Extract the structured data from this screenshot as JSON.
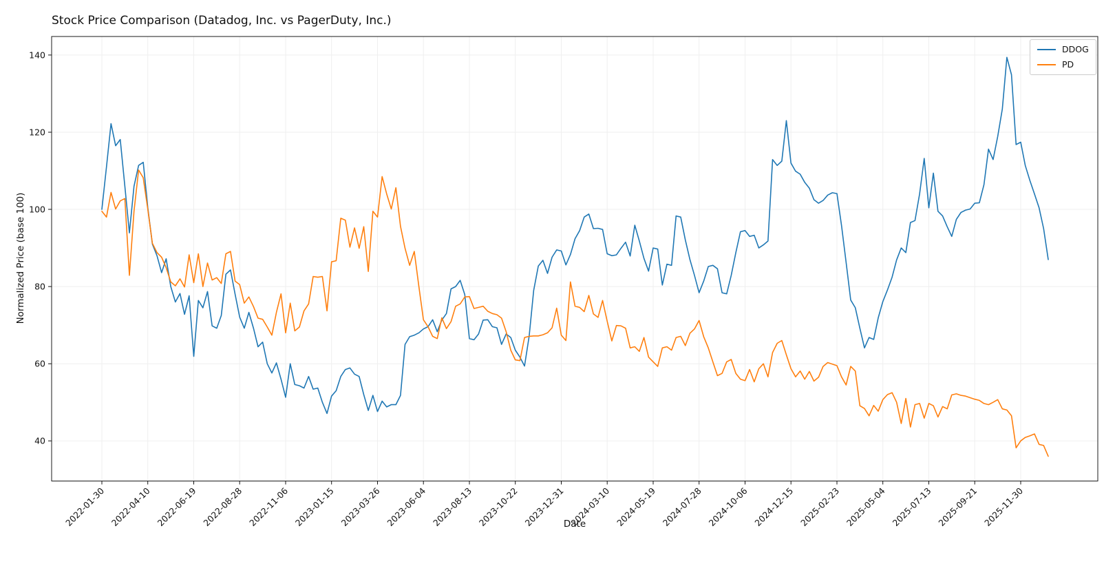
{
  "title": "Stock Price Comparison (Datadog, Inc. vs PagerDuty, Inc.)",
  "xlabel": "Date",
  "ylabel": "Normalized Price (base 100)",
  "legend": {
    "position": "upper right",
    "items": [
      {
        "label": "DDOG",
        "color": "#1f77b4"
      },
      {
        "label": "PD",
        "color": "#ff7f0e"
      }
    ]
  },
  "chart_data": {
    "type": "line",
    "title": "Stock Price Comparison (Datadog, Inc. vs PagerDuty, Inc.)",
    "xlabel": "Date",
    "ylabel": "Normalized Price (base 100)",
    "grid": true,
    "legend_position": "upper right",
    "x_start_date": "2022-01-30",
    "x_frequency": "weekly",
    "x_tick_every": 10,
    "x_tick_labels": [
      "2022-01-30",
      "2022-04-10",
      "2022-06-19",
      "2022-08-28",
      "2022-11-06",
      "2023-01-15",
      "2023-03-26",
      "2023-06-04",
      "2023-08-13",
      "2023-10-22",
      "2023-12-31",
      "2024-03-10",
      "2024-05-19",
      "2024-07-28",
      "2024-10-06",
      "2024-12-15",
      "2025-02-23",
      "2025-05-04",
      "2025-07-13",
      "2025-09-21",
      "2025-11-30"
    ],
    "y_ticks": [
      40,
      60,
      80,
      100,
      120,
      140
    ],
    "ylim": [
      29.6,
      144.8
    ],
    "series": [
      {
        "name": "DDOG",
        "color": "#1f77b4",
        "values": [
          100,
          111,
          122.2,
          116.5,
          118.1,
          106,
          93.9,
          106,
          111.4,
          112.2,
          100.5,
          91,
          88,
          83.6,
          87.2,
          80,
          76,
          78.2,
          72.8,
          77.6,
          61.9,
          76.4,
          74.5,
          78.7,
          69.8,
          69.2,
          72.5,
          83.2,
          84.3,
          78,
          72.1,
          69.2,
          73.3,
          69.2,
          64.4,
          65.6,
          60,
          57.6,
          60.2,
          56,
          51.3,
          60,
          54.6,
          54.3,
          53.7,
          56.7,
          53.4,
          53.7,
          50,
          47.1,
          51.6,
          53,
          56.7,
          58.5,
          58.9,
          57.3,
          56.7,
          52,
          47.9,
          51.8,
          47.6,
          50.3,
          48.8,
          49.4,
          49.4,
          51.8,
          65,
          67,
          67.4,
          68,
          69,
          69.6,
          71.4,
          68.3,
          71.3,
          73,
          79.4,
          80,
          81.6,
          77.9,
          66.5,
          66.2,
          67.7,
          71.3,
          71.4,
          69.6,
          69.3,
          65,
          67.7,
          66.8,
          63.5,
          61.7,
          59.4,
          67.1,
          79,
          85.3,
          86.8,
          83.4,
          87.6,
          89.5,
          89.2,
          85.6,
          88.3,
          92.4,
          94.5,
          98.0,
          98.8,
          95.0,
          95.1,
          94.8,
          88.5,
          88.0,
          88.2,
          89.9,
          91.5,
          87.9,
          95.9,
          91.8,
          87.3,
          84.0,
          90.0,
          89.7,
          80.4,
          85.8,
          85.5,
          98.3,
          98.0,
          92.1,
          87.0,
          82.9,
          78.4,
          81.4,
          85.2,
          85.5,
          84.6,
          78.4,
          78.1,
          82.9,
          88.8,
          94.2,
          94.5,
          93.0,
          93.3,
          90.0,
          90.8,
          91.8,
          112.9,
          111.4,
          112.5,
          123.0,
          112.0,
          109.9,
          109.1,
          107.0,
          105.5,
          102.5,
          101.6,
          102.3,
          103.7,
          104.3,
          104.1,
          95.9,
          86.3,
          76.5,
          74.5,
          69.2,
          64.1,
          66.8,
          66.3,
          71.9,
          76.1,
          79.1,
          82.4,
          86.9,
          90.0,
          88.8,
          96.6,
          97.1,
          104,
          113.2,
          100.4,
          109.4,
          99.5,
          98.3,
          95.5,
          93.0,
          97.4,
          99.2,
          99.8,
          100.1,
          101.6,
          101.7,
          106.4,
          115.6,
          112.9,
          118.9,
          126,
          139.4,
          134.9,
          116.8,
          117.4,
          111.4,
          107.5,
          104,
          100.4,
          95,
          87
        ]
      },
      {
        "name": "PD",
        "color": "#ff7f0e",
        "values": [
          99.5,
          98,
          104.4,
          100.1,
          102.2,
          102.8,
          82.9,
          99.5,
          110.2,
          108.2,
          100.1,
          91.2,
          88.8,
          87.6,
          84.9,
          81.2,
          80.2,
          82,
          79.9,
          88.2,
          81,
          88.5,
          80,
          86.1,
          81.7,
          82.3,
          80.8,
          88.5,
          89.1,
          81.4,
          80.5,
          75.7,
          77.3,
          74.8,
          71.8,
          71.5,
          69.5,
          67.4,
          73.3,
          78.1,
          68,
          75.7,
          68.5,
          69.5,
          73.7,
          75.5,
          82.6,
          82.4,
          82.6,
          73.7,
          86.4,
          86.7,
          97.7,
          97.2,
          90.2,
          95.2,
          89.9,
          95.5,
          83.9,
          99.5,
          98,
          108.5,
          104,
          100.1,
          105.6,
          95.6,
          89.9,
          85.5,
          89.1,
          80,
          71.4,
          69.6,
          67.1,
          66.5,
          71.9,
          69.1,
          70.9,
          74.9,
          75.5,
          77.3,
          77.4,
          74.3,
          74.6,
          74.9,
          73.6,
          73,
          72.7,
          71.8,
          68.3,
          63.5,
          61,
          60.8,
          66.8,
          67.1,
          67.2,
          67.2,
          67.5,
          68,
          69.3,
          74.4,
          67.4,
          66,
          81.2,
          74.9,
          74.6,
          73.5,
          77.7,
          72.9,
          72,
          76.4,
          71,
          65.9,
          69.9,
          69.8,
          69.2,
          64.1,
          64.4,
          63.2,
          66.8,
          61.7,
          60.5,
          59.3,
          64.1,
          64.4,
          63.5,
          66.8,
          67.1,
          64.7,
          67.9,
          69,
          71.2,
          67,
          64.1,
          60.5,
          56.9,
          57.5,
          60.5,
          61.1,
          57.5,
          56,
          55.6,
          58.5,
          55.3,
          58.7,
          60,
          56.6,
          62.9,
          65.3,
          66,
          62.3,
          58.7,
          56.6,
          58.1,
          56,
          58,
          55.5,
          56.5,
          59.3,
          60.3,
          59.9,
          59.5,
          56.6,
          54.5,
          59.3,
          58.1,
          49.1,
          48.4,
          46.5,
          49.2,
          47.7,
          50.7,
          52,
          52.5,
          50,
          44.5,
          51,
          43.6,
          49.4,
          49.7,
          45.9,
          49.7,
          49.1,
          46.2,
          48.9,
          48.3,
          51.9,
          52.2,
          51.8,
          51.6,
          51.2,
          50.8,
          50.5,
          49.7,
          49.4,
          50,
          50.7,
          48.3,
          48,
          46.5,
          38.2,
          40,
          40.9,
          41.3,
          41.8,
          39.1,
          38.8,
          36
        ]
      }
    ]
  }
}
